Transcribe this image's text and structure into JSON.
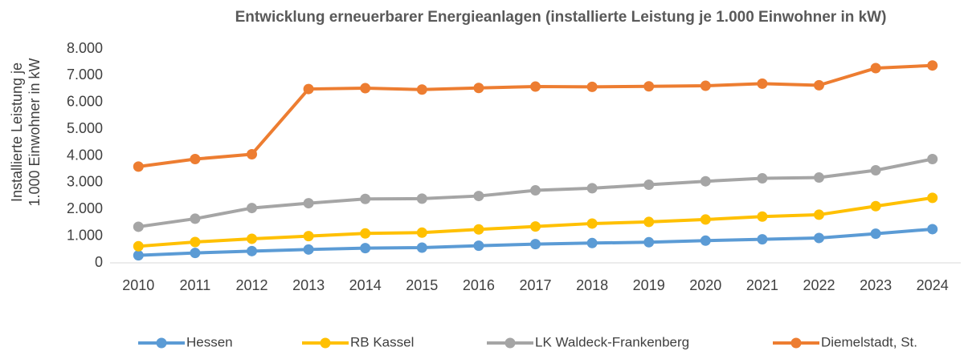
{
  "chart_data": {
    "type": "line",
    "title": "Entwicklung erneuerbarer Energieanlagen (installierte Leistung je 1.000 Einwohner in kW)",
    "ylabel": [
      "Installierte Leistung je",
      "1.000 Einwohner in kW"
    ],
    "categories": [
      "2010",
      "2011",
      "2012",
      "2013",
      "2014",
      "2015",
      "2016",
      "2017",
      "2018",
      "2019",
      "2020",
      "2021",
      "2022",
      "2023",
      "2024"
    ],
    "series": [
      {
        "name": "Hessen",
        "color": "#5b9bd5",
        "values": [
          280,
          370,
          440,
          500,
          550,
          570,
          640,
          700,
          740,
          770,
          830,
          880,
          930,
          1090,
          1260
        ]
      },
      {
        "name": "RB Kassel",
        "color": "#ffc000",
        "values": [
          620,
          780,
          900,
          1000,
          1100,
          1130,
          1250,
          1360,
          1470,
          1530,
          1620,
          1730,
          1800,
          2120,
          2430
        ]
      },
      {
        "name": "LK Waldeck-Frankenberg",
        "color": "#a5a5a5",
        "values": [
          1350,
          1650,
          2050,
          2230,
          2390,
          2400,
          2500,
          2710,
          2790,
          2920,
          3050,
          3160,
          3190,
          3460,
          3880
        ]
      },
      {
        "name": "Diemelstadt, St.",
        "color": "#ed7d31",
        "values": [
          3600,
          3880,
          4060,
          6500,
          6530,
          6480,
          6540,
          6590,
          6580,
          6600,
          6620,
          6700,
          6640,
          7280,
          7380
        ]
      }
    ],
    "ylim": [
      0,
      8000
    ],
    "yticks": [
      0,
      {
        "value": 1000,
        "label": "1.000"
      },
      {
        "value": 2000,
        "label": "2.000"
      },
      {
        "value": 3000,
        "label": "3.000"
      },
      {
        "value": 4000,
        "label": "4.000"
      },
      {
        "value": 5000,
        "label": "5.000"
      },
      {
        "value": 6000,
        "label": "6.000"
      },
      {
        "value": 7000,
        "label": "7.000"
      },
      {
        "value": 8000,
        "label": "8.000"
      }
    ],
    "grid": false,
    "legend": "bottom"
  }
}
